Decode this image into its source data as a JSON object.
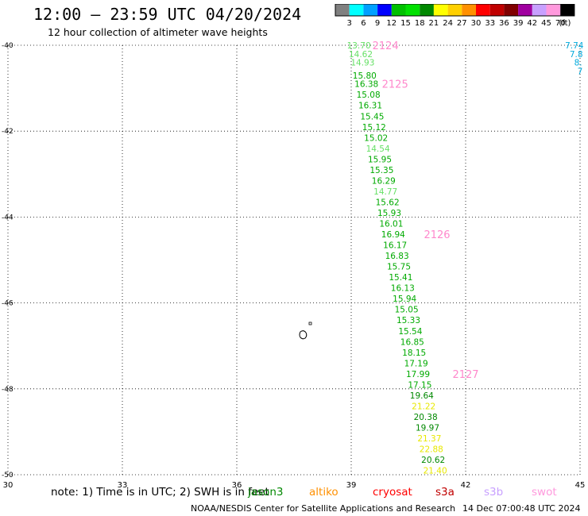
{
  "header": {
    "title": "12:00 – 23:59 UTC 04/20/2024",
    "subtitle": "12 hour collection of altimeter wave heights"
  },
  "colorbar": {
    "labels": [
      "3",
      "6",
      "9",
      "12",
      "15",
      "18",
      "21",
      "24",
      "27",
      "30",
      "33",
      "36",
      "39",
      "42",
      "45",
      "70"
    ],
    "unit": "(ft)",
    "colors": [
      "#808080",
      "#00ffff",
      "#00a0ff",
      "#0000ff",
      "#00c000",
      "#00e000",
      "#008800",
      "#ffff00",
      "#ffd000",
      "#ff9000",
      "#ff0000",
      "#c00000",
      "#800000",
      "#a000a0",
      "#c8a0ff",
      "#ff99dd",
      "#000000"
    ]
  },
  "footer": {
    "note": "note:  1) Time is in UTC; 2) SWH is in feet",
    "satellites": [
      {
        "name": "jason3",
        "color": "#008800"
      },
      {
        "name": "altiko",
        "color": "#ff9000"
      },
      {
        "name": "cryosat",
        "color": "#ff0000"
      },
      {
        "name": "s3a",
        "color": "#c00000"
      },
      {
        "name": "s3b",
        "color": "#c8a0ff"
      },
      {
        "name": "swot",
        "color": "#ff99dd"
      }
    ],
    "credit": "NOAA/NESDIS Center for Satellite Applications and Research",
    "timestamp": "14 Dec 07:00:48 UTC 2024"
  },
  "chart_data": {
    "type": "scatter",
    "title": "12:00 – 23:59 UTC 04/20/2024",
    "subtitle": "12 hour collection of altimeter wave heights",
    "xlim": [
      30,
      45
    ],
    "ylim": [
      -50,
      -40
    ],
    "x_ticks": [
      "30",
      "33",
      "36",
      "39",
      "42",
      "45"
    ],
    "y_ticks": [
      "-40",
      "-42",
      "-44",
      "-46",
      "-48",
      "-50"
    ],
    "grid": true,
    "colors": {
      "light_green": "#66e066",
      "green": "#00aa00",
      "dark_green": "#008800",
      "yellow": "#e8e800",
      "pass_label": "#ff88cc",
      "cyan": "#00aadd"
    },
    "points": [
      {
        "lon": 39.2,
        "lat": -40.0,
        "value": "13.70",
        "color": "light_green"
      },
      {
        "lon": 39.25,
        "lat": -40.2,
        "value": "14.62",
        "color": "light_green"
      },
      {
        "lon": 39.3,
        "lat": -40.4,
        "value": "14.93",
        "color": "light_green"
      },
      {
        "lon": 39.35,
        "lat": -40.7,
        "value": "15.80",
        "color": "green"
      },
      {
        "lon": 39.4,
        "lat": -40.9,
        "value": "16.38",
        "color": "green"
      },
      {
        "lon": 39.45,
        "lat": -41.15,
        "value": "15.08",
        "color": "green"
      },
      {
        "lon": 39.5,
        "lat": -41.4,
        "value": "16.31",
        "color": "green"
      },
      {
        "lon": 39.55,
        "lat": -41.65,
        "value": "15.45",
        "color": "green"
      },
      {
        "lon": 39.6,
        "lat": -41.9,
        "value": "15.12",
        "color": "green"
      },
      {
        "lon": 39.65,
        "lat": -42.15,
        "value": "15.02",
        "color": "green"
      },
      {
        "lon": 39.7,
        "lat": -42.4,
        "value": "14.54",
        "color": "light_green"
      },
      {
        "lon": 39.75,
        "lat": -42.65,
        "value": "15.95",
        "color": "green"
      },
      {
        "lon": 39.8,
        "lat": -42.9,
        "value": "15.35",
        "color": "green"
      },
      {
        "lon": 39.85,
        "lat": -43.15,
        "value": "16.29",
        "color": "green"
      },
      {
        "lon": 39.9,
        "lat": -43.4,
        "value": "14.77",
        "color": "light_green"
      },
      {
        "lon": 39.95,
        "lat": -43.65,
        "value": "15.62",
        "color": "green"
      },
      {
        "lon": 40.0,
        "lat": -43.9,
        "value": "15.93",
        "color": "green"
      },
      {
        "lon": 40.05,
        "lat": -44.15,
        "value": "16.01",
        "color": "green"
      },
      {
        "lon": 40.1,
        "lat": -44.4,
        "value": "16.94",
        "color": "green"
      },
      {
        "lon": 40.15,
        "lat": -44.65,
        "value": "16.17",
        "color": "green"
      },
      {
        "lon": 40.2,
        "lat": -44.9,
        "value": "16.83",
        "color": "green"
      },
      {
        "lon": 40.25,
        "lat": -45.15,
        "value": "15.75",
        "color": "green"
      },
      {
        "lon": 40.3,
        "lat": -45.4,
        "value": "15.41",
        "color": "green"
      },
      {
        "lon": 40.35,
        "lat": -45.65,
        "value": "16.13",
        "color": "green"
      },
      {
        "lon": 40.4,
        "lat": -45.9,
        "value": "15.94",
        "color": "green"
      },
      {
        "lon": 40.45,
        "lat": -46.15,
        "value": "15.05",
        "color": "green"
      },
      {
        "lon": 40.5,
        "lat": -46.4,
        "value": "15.33",
        "color": "green"
      },
      {
        "lon": 40.55,
        "lat": -46.65,
        "value": "15.54",
        "color": "green"
      },
      {
        "lon": 40.6,
        "lat": -46.9,
        "value": "16.85",
        "color": "green"
      },
      {
        "lon": 40.65,
        "lat": -47.15,
        "value": "18.15",
        "color": "green"
      },
      {
        "lon": 40.7,
        "lat": -47.4,
        "value": "17.19",
        "color": "green"
      },
      {
        "lon": 40.75,
        "lat": -47.65,
        "value": "17.99",
        "color": "green"
      },
      {
        "lon": 40.8,
        "lat": -47.9,
        "value": "17.15",
        "color": "green"
      },
      {
        "lon": 40.85,
        "lat": -48.15,
        "value": "19.64",
        "color": "dark_green"
      },
      {
        "lon": 40.9,
        "lat": -48.4,
        "value": "21.22",
        "color": "yellow"
      },
      {
        "lon": 40.95,
        "lat": -48.65,
        "value": "20.38",
        "color": "dark_green"
      },
      {
        "lon": 41.0,
        "lat": -48.9,
        "value": "19.97",
        "color": "dark_green"
      },
      {
        "lon": 41.05,
        "lat": -49.15,
        "value": "21.37",
        "color": "yellow"
      },
      {
        "lon": 41.1,
        "lat": -49.4,
        "value": "22.88",
        "color": "yellow"
      },
      {
        "lon": 41.15,
        "lat": -49.65,
        "value": "20.62",
        "color": "dark_green"
      },
      {
        "lon": 41.2,
        "lat": -49.9,
        "value": "21.40",
        "color": "yellow"
      },
      {
        "lon": 44.85,
        "lat": -40.0,
        "value": "7.74",
        "color": "cyan"
      },
      {
        "lon": 44.9,
        "lat": -40.2,
        "value": "7.8",
        "color": "cyan"
      },
      {
        "lon": 44.95,
        "lat": -40.4,
        "value": "8.",
        "color": "cyan"
      },
      {
        "lon": 45.0,
        "lat": -40.6,
        "value": "7",
        "color": "cyan"
      }
    ],
    "pass_labels": [
      {
        "lon": 39.9,
        "lat": -40.0,
        "text": "2124"
      },
      {
        "lon": 40.15,
        "lat": -40.9,
        "text": "2125"
      },
      {
        "lon": 41.25,
        "lat": -44.4,
        "text": "2126"
      },
      {
        "lon": 42.0,
        "lat": -47.65,
        "text": "2127"
      }
    ]
  }
}
